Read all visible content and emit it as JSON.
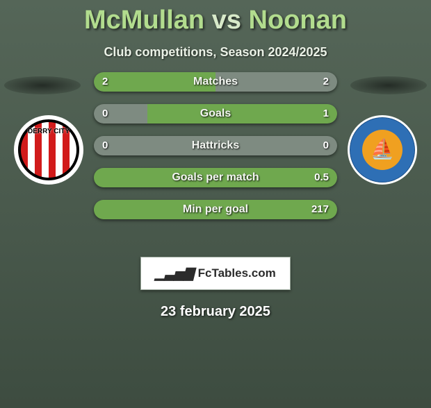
{
  "title": {
    "player1": "McMullan",
    "vs": "vs",
    "player2": "Noonan"
  },
  "subtitle": "Club competitions, Season 2024/2025",
  "colors": {
    "left_fill": "#6fa84e",
    "right_fill": "#7e8b81",
    "neutral_fill": "#7e8b81",
    "text": "#eef2eb"
  },
  "bars": [
    {
      "metric": "Matches",
      "left": "2",
      "right": "2",
      "left_pct": 50,
      "right_pct": 50,
      "left_color": "#6fa84e",
      "right_color": "#7e8b81"
    },
    {
      "metric": "Goals",
      "left": "0",
      "right": "1",
      "left_pct": 22,
      "right_pct": 78,
      "left_color": "#7e8b81",
      "right_color": "#6fa84e"
    },
    {
      "metric": "Hattricks",
      "left": "0",
      "right": "0",
      "left_pct": 0,
      "right_pct": 100,
      "left_color": "#7e8b81",
      "right_color": "#7e8b81"
    },
    {
      "metric": "Goals per match",
      "left": "",
      "right": "0.5",
      "left_pct": 0,
      "right_pct": 100,
      "left_color": "#7e8b81",
      "right_color": "#6fa84e"
    },
    {
      "metric": "Min per goal",
      "left": "",
      "right": "217",
      "left_pct": 0,
      "right_pct": 100,
      "left_color": "#7e8b81",
      "right_color": "#6fa84e"
    }
  ],
  "badge": {
    "icon": "📊",
    "text": "FcTables.com"
  },
  "date": "23 february 2025",
  "crest_left_label": "DERRY CITY"
}
